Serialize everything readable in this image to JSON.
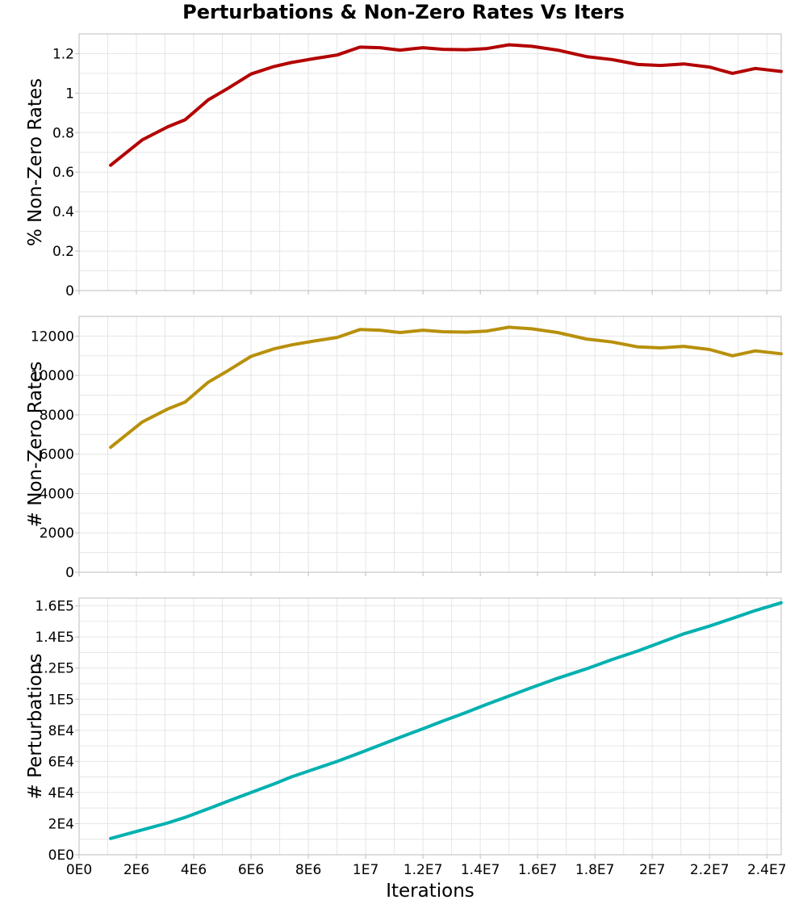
{
  "title": "Perturbations & Non-Zero Rates Vs Iters",
  "chart_data": [
    {
      "type": "line",
      "ylabel": "% Non-Zero Rates",
      "xlabel": "",
      "color": "#b30000",
      "xlim": [
        0,
        24500000
      ],
      "ylim": [
        0,
        1.3
      ],
      "y_ticks": [
        0,
        0.2,
        0.4,
        0.6,
        0.8,
        1,
        1.2
      ],
      "y_tick_labels": [
        "0",
        "0.2",
        "0.4",
        "0.6",
        "0.8",
        "1",
        "1.2"
      ],
      "x": [
        1100000,
        2200000,
        3100000,
        3700000,
        4500000,
        5200000,
        6000000,
        6800000,
        7400000,
        8200000,
        9000000,
        9800000,
        10500000,
        11200000,
        12000000,
        12700000,
        13500000,
        14200000,
        15000000,
        15800000,
        16700000,
        17700000,
        18600000,
        19500000,
        20300000,
        21100000,
        22000000,
        22800000,
        23600000,
        24500000
      ],
      "values": [
        0.635,
        0.763,
        0.83,
        0.865,
        0.965,
        1.025,
        1.097,
        1.135,
        1.155,
        1.175,
        1.193,
        1.233,
        1.23,
        1.218,
        1.23,
        1.222,
        1.22,
        1.225,
        1.245,
        1.237,
        1.218,
        1.185,
        1.17,
        1.145,
        1.14,
        1.148,
        1.132,
        1.1,
        1.125,
        1.11
      ]
    },
    {
      "type": "line",
      "ylabel": "# Non-Zero Rates",
      "xlabel": "",
      "color": "#b8900b",
      "xlim": [
        0,
        24500000
      ],
      "ylim": [
        0,
        13000
      ],
      "y_ticks": [
        0,
        2000,
        4000,
        6000,
        8000,
        10000,
        12000
      ],
      "y_tick_labels": [
        "0",
        "2000",
        "4000",
        "6000",
        "8000",
        "10000",
        "12000"
      ],
      "x": [
        1100000,
        2200000,
        3100000,
        3700000,
        4500000,
        5200000,
        6000000,
        6800000,
        7400000,
        8200000,
        9000000,
        9800000,
        10500000,
        11200000,
        12000000,
        12700000,
        13500000,
        14200000,
        15000000,
        15800000,
        16700000,
        17700000,
        18600000,
        19500000,
        20300000,
        21100000,
        22000000,
        22800000,
        23600000,
        24500000
      ],
      "values": [
        6350,
        7630,
        8300,
        8650,
        9650,
        10250,
        10970,
        11350,
        11550,
        11750,
        11930,
        12330,
        12300,
        12180,
        12300,
        12220,
        12200,
        12250,
        12450,
        12370,
        12180,
        11850,
        11700,
        11450,
        11400,
        11480,
        11320,
        11000,
        11250,
        11100
      ]
    },
    {
      "type": "line",
      "ylabel": "# Perturbations",
      "xlabel": "Iterations",
      "color": "#00b0b0",
      "xlim": [
        0,
        24500000
      ],
      "ylim": [
        0,
        165000
      ],
      "y_ticks": [
        0,
        20000,
        40000,
        60000,
        80000,
        100000,
        120000,
        140000,
        160000
      ],
      "y_tick_labels": [
        "0E0",
        "2E4",
        "4E4",
        "6E4",
        "8E4",
        "1E5",
        "1.2E5",
        "1.4E5",
        "1.6E5"
      ],
      "x_ticks": [
        0,
        2000000,
        4000000,
        6000000,
        8000000,
        10000000,
        12000000,
        14000000,
        16000000,
        18000000,
        20000000,
        22000000,
        24000000
      ],
      "x_tick_labels": [
        "0E0",
        "2E6",
        "4E6",
        "6E6",
        "8E6",
        "1E7",
        "1.2E7",
        "1.4E7",
        "1.6E7",
        "1.8E7",
        "2E7",
        "2.2E7",
        "2.4E7"
      ],
      "x": [
        1100000,
        2200000,
        3100000,
        3700000,
        4500000,
        5200000,
        6000000,
        6800000,
        7400000,
        8200000,
        9000000,
        9800000,
        10500000,
        11200000,
        12000000,
        12700000,
        13500000,
        14200000,
        15000000,
        15800000,
        16700000,
        17700000,
        18600000,
        19500000,
        20300000,
        21100000,
        22000000,
        22800000,
        23600000,
        24500000
      ],
      "values": [
        10500,
        16000,
        20500,
        24000,
        29500,
        34500,
        40000,
        45500,
        50000,
        55000,
        60000,
        65500,
        70500,
        75500,
        81000,
        86000,
        91500,
        96500,
        102000,
        107500,
        113500,
        119500,
        125500,
        131000,
        136500,
        142000,
        147000,
        152000,
        157000,
        162000
      ]
    }
  ]
}
